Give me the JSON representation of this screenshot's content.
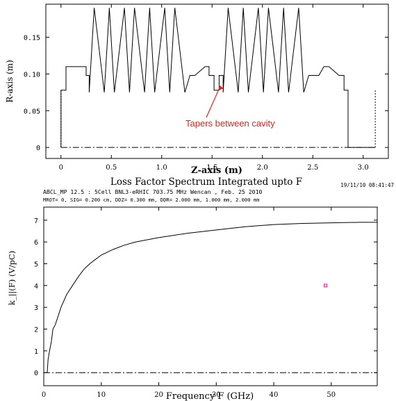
{
  "chart_data": [
    {
      "type": "line",
      "xlabel": "Z-axis (m)",
      "ylabel": "R-axis (m)",
      "xlim": [
        -0.15,
        3.25
      ],
      "ylim": [
        -0.015,
        0.195
      ],
      "x_ticks": [
        "0",
        "0.5",
        "1.0",
        "1.5",
        "2.0",
        "2.5",
        "3.0"
      ],
      "x_tick_values": [
        0,
        0.5,
        1.0,
        1.5,
        2.0,
        2.5,
        3.0
      ],
      "y_ticks": [
        "0",
        "0.05",
        "0.10",
        "0.15"
      ],
      "y_tick_values": [
        0,
        0.05,
        0.1,
        0.15
      ],
      "series": [
        {
          "style": "solid",
          "x": [
            0.0,
            0.0,
            0.05,
            0.05,
            0.25,
            0.25,
            0.28,
            0.28,
            0.33,
            0.43,
            0.48,
            0.53,
            0.63,
            0.68,
            0.73,
            0.83,
            0.88,
            0.93,
            1.03,
            1.08,
            1.13,
            1.23,
            1.28,
            1.33,
            1.43,
            1.47,
            1.47,
            1.52,
            1.52,
            1.57,
            1.57,
            1.61,
            1.61,
            1.66,
            1.76,
            1.81,
            1.86,
            1.96,
            2.01,
            2.06,
            2.16,
            2.21,
            2.26,
            2.36,
            2.41,
            2.46,
            2.56,
            2.61,
            2.66,
            2.76,
            2.81,
            2.81,
            2.85,
            2.85,
            3.07,
            3.07,
            3.12,
            3.12
          ],
          "y": [
            0.0,
            0.078,
            0.078,
            0.11,
            0.11,
            0.098,
            0.098,
            0.075,
            0.19,
            0.075,
            0.19,
            0.075,
            0.19,
            0.075,
            0.19,
            0.075,
            0.19,
            0.075,
            0.19,
            0.075,
            0.19,
            0.075,
            0.098,
            0.098,
            0.11,
            0.11,
            0.098,
            0.098,
            0.078,
            0.078,
            0.098,
            0.098,
            0.075,
            0.19,
            0.075,
            0.19,
            0.075,
            0.19,
            0.075,
            0.19,
            0.075,
            0.19,
            0.075,
            0.19,
            0.075,
            0.098,
            0.098,
            0.11,
            0.11,
            0.098,
            0.098,
            0.078,
            0.078,
            0.0,
            0.0,
            0.0,
            0.0,
            0.0
          ]
        },
        {
          "style": "dash-dot",
          "x": [
            0.0,
            3.12
          ],
          "y": [
            0.0,
            0.0
          ]
        }
      ],
      "annotations": [
        {
          "text": "Tapers between cavity",
          "x": 1.55,
          "y": 0.088,
          "color": "#e8201a"
        }
      ],
      "colors": {
        "line": "#000000",
        "annotation": "#e8201a"
      }
    },
    {
      "type": "line",
      "title": "Loss Factor Spectrum Integrated upto F",
      "timestamp": "19/11/10  08:41:47",
      "subtitle_lines": [
        "ABCL_MP 12.5 :  5Cell BNL3-eRHIC 703.75 MHz Wencan , Feb. 25 2010",
        "MROT= 0,  SIG= 0.200 cm,  DDZ= 0.300 mm,  DDR= 2.000 mm,  1.000 mm,  2.000 mm"
      ],
      "xlabel": "Frequency F (GHz)",
      "ylabel": "k_||(F)  (V/pC)",
      "xlim": [
        0,
        58
      ],
      "ylim": [
        -0.6,
        7.6
      ],
      "x_ticks": [
        "0",
        "10",
        "20",
        "30",
        "40",
        "50"
      ],
      "x_tick_values": [
        0,
        10,
        20,
        30,
        40,
        50
      ],
      "y_ticks": [
        "0",
        "1",
        "2",
        "3",
        "4",
        "5",
        "6",
        "7"
      ],
      "y_tick_values": [
        0,
        1,
        2,
        3,
        4,
        5,
        6,
        7
      ],
      "series": [
        {
          "style": "solid",
          "x": [
            0.6,
            0.75,
            1.0,
            1.3,
            1.6,
            2.0,
            2.5,
            3.0,
            4.0,
            5.0,
            6.0,
            7.0,
            8.0,
            9.0,
            10.0,
            12.0,
            14.0,
            16.0,
            18.0,
            20.0,
            25.0,
            30.0,
            35.0,
            40.0,
            45.0,
            50.0,
            55.0,
            58.0
          ],
          "y": [
            0.0,
            0.6,
            1.0,
            1.4,
            2.0,
            2.2,
            2.6,
            3.0,
            3.6,
            4.0,
            4.4,
            4.75,
            5.0,
            5.2,
            5.4,
            5.65,
            5.85,
            6.0,
            6.1,
            6.2,
            6.4,
            6.55,
            6.7,
            6.8,
            6.85,
            6.88,
            6.9,
            6.9
          ]
        },
        {
          "style": "dash-dot",
          "x": [
            0,
            58
          ],
          "y": [
            0,
            0
          ]
        }
      ],
      "marker": {
        "x": 49,
        "y": 4.0,
        "color": "#cc2a8a"
      },
      "colors": {
        "line": "#000000"
      }
    }
  ]
}
